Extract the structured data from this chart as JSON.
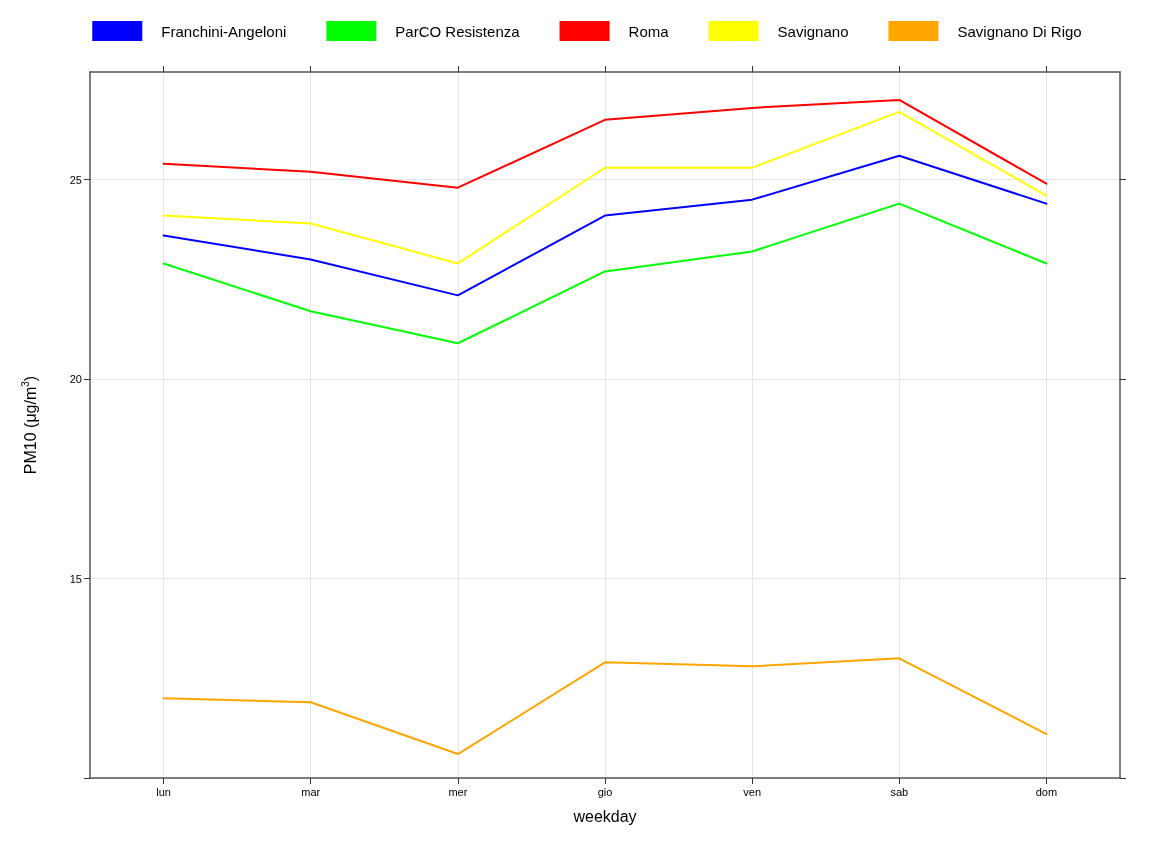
{
  "chart_data": {
    "type": "line",
    "xlabel": "weekday",
    "ylabel": "PM10 (μg/m$^{3}$)",
    "categories": [
      "lun",
      "mar",
      "mer",
      "gio",
      "ven",
      "sab",
      "dom"
    ],
    "series": [
      {
        "name": "Franchini-Angeloni",
        "color": "#0000ff",
        "values": [
          23.6,
          23.0,
          22.1,
          24.1,
          24.5,
          25.6,
          24.4
        ]
      },
      {
        "name": "ParCO Resistenza",
        "color": "#00ff00",
        "values": [
          22.9,
          21.7,
          20.9,
          22.7,
          23.2,
          24.4,
          22.9
        ]
      },
      {
        "name": "Roma",
        "color": "#ff0000",
        "values": [
          25.4,
          25.2,
          24.8,
          26.5,
          26.8,
          27.0,
          24.9
        ]
      },
      {
        "name": "Savignano",
        "color": "#ffff00",
        "values": [
          24.1,
          23.9,
          22.9,
          25.3,
          25.3,
          26.7,
          24.6
        ]
      },
      {
        "name": "Savignano Di Rigo",
        "color": "#ffa500",
        "values": [
          12.0,
          11.9,
          10.6,
          12.9,
          12.8,
          13.0,
          11.1
        ]
      }
    ],
    "ylim": [
      10,
      27.7
    ],
    "yticks": [
      {
        "value": 10,
        "label": null
      },
      15,
      20,
      25
    ],
    "grid": true,
    "legend": "top",
    "marker": "none",
    "line_style": "solid"
  }
}
